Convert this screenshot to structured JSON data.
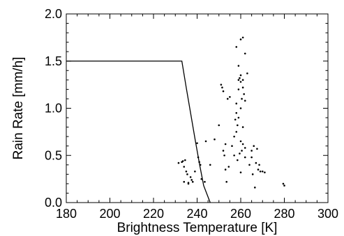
{
  "chart_data": {
    "type": "scatter",
    "title": "",
    "xlabel": "Brightness Temperature [K]",
    "ylabel": "Rain Rate [mm/h]",
    "xlim": [
      180,
      300
    ],
    "ylim": [
      0.0,
      2.0
    ],
    "xticks": [
      180,
      200,
      220,
      240,
      260,
      280,
      300
    ],
    "yticks": [
      0.0,
      0.5,
      1.0,
      1.5,
      2.0
    ],
    "xtick_labels": [
      "180",
      "200",
      "220",
      "240",
      "260",
      "280",
      "300"
    ],
    "ytick_labels": [
      "0.0",
      "0.5",
      "1.0",
      "1.5",
      "2.0"
    ],
    "grid": false,
    "legend": "none",
    "line": {
      "x": [
        180,
        233,
        235,
        237,
        239,
        241,
        243,
        246
      ],
      "y": [
        1.5,
        1.5,
        1.22,
        0.95,
        0.68,
        0.42,
        0.18,
        0.0
      ]
    },
    "points": {
      "x": [
        231.5,
        233,
        233.5,
        234,
        234.5,
        235,
        234,
        235.5,
        236,
        237,
        237.5,
        238,
        236,
        239,
        240.5,
        241,
        241.5,
        242,
        240,
        243.5,
        244,
        246,
        248,
        250,
        251,
        251.5,
        252,
        252.5,
        253,
        253.5,
        254,
        255,
        254.5,
        253,
        252,
        256,
        257,
        257.5,
        258,
        258.5,
        259,
        259,
        259.5,
        260,
        260,
        260.5,
        261,
        261,
        261.5,
        262,
        258,
        259,
        260,
        260.5,
        261,
        262,
        257,
        258.5,
        259.5,
        260,
        261,
        262,
        258,
        260,
        261,
        262,
        263,
        264,
        265,
        265.5,
        266,
        266.5,
        267,
        267.5,
        268,
        268.5,
        269,
        270,
        271,
        279.5,
        280,
        265,
        258,
        259,
        260
      ],
      "y": [
        0.42,
        0.43,
        0.44,
        0.38,
        0.45,
        0.33,
        0.22,
        0.3,
        0.21,
        0.27,
        0.24,
        0.22,
        0.2,
        0.33,
        0.48,
        0.43,
        0.4,
        0.25,
        0.63,
        0.22,
        0.65,
        0.4,
        0.67,
        0.82,
        1.25,
        1.22,
        1.18,
        0.5,
        0.62,
        0.22,
        1.1,
        1.12,
        0.38,
        0.35,
        0.55,
        0.6,
        0.7,
        0.88,
        0.95,
        0.82,
        1.2,
        1.3,
        1.32,
        1.35,
        1.28,
        1.1,
        1.3,
        1.22,
        1.15,
        1.08,
        0.75,
        0.9,
        0.65,
        0.55,
        0.8,
        0.58,
        0.5,
        0.45,
        0.52,
        0.32,
        0.62,
        0.48,
        1.65,
        1.73,
        1.75,
        1.58,
        1.37,
        0.4,
        0.48,
        0.3,
        0.6,
        0.16,
        0.42,
        0.57,
        0.35,
        0.4,
        0.33,
        0.33,
        0.32,
        0.2,
        0.18,
        0.55,
        1.05,
        1.45,
        1.0
      ]
    }
  }
}
